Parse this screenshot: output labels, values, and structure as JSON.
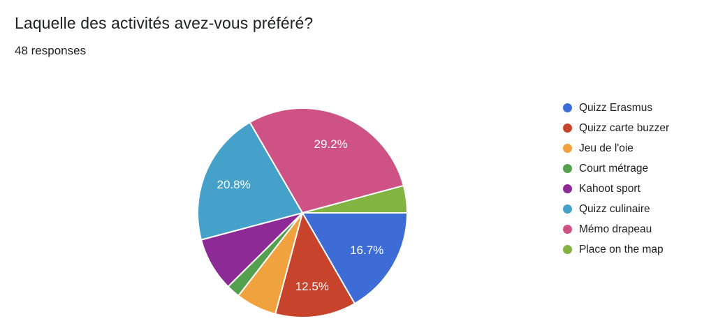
{
  "header": {
    "title": "Laquelle des activités avez-vous préféré?",
    "responses_count": "48 responses"
  },
  "chart_data": {
    "type": "pie",
    "title": "Laquelle des activités avez-vous préféré?",
    "total_responses": 48,
    "legend_position": "right",
    "start_angle_deg": 90,
    "direction": "clockwise",
    "slices": [
      {
        "label": "Quizz Erasmus",
        "pct": 16.7,
        "display": "16.7%",
        "responses": 8,
        "color": "#3D6CD7",
        "show_label": true
      },
      {
        "label": "Quizz carte buzzer",
        "pct": 12.5,
        "display": "12.5%",
        "responses": 6,
        "color": "#C7432B",
        "show_label": true
      },
      {
        "label": "Jeu de l'oie",
        "pct": 6.3,
        "display": "6.3%",
        "responses": 3,
        "color": "#F0A23F",
        "show_label": false
      },
      {
        "label": "Court métrage",
        "pct": 2.1,
        "display": "2.1%",
        "responses": 1,
        "color": "#55A04E",
        "show_label": false
      },
      {
        "label": "Kahoot sport",
        "pct": 8.3,
        "display": "8.3%",
        "responses": 4,
        "color": "#8E2A96",
        "show_label": false
      },
      {
        "label": "Quizz culinaire",
        "pct": 20.8,
        "display": "20.8%",
        "responses": 10,
        "color": "#45A1C9",
        "show_label": true
      },
      {
        "label": "Mémo drapeau",
        "pct": 29.2,
        "display": "29.2%",
        "responses": 14,
        "color": "#CE5283",
        "show_label": true
      },
      {
        "label": "Place on the map",
        "pct": 4.2,
        "display": "4.2%",
        "responses": 2,
        "color": "#83B340",
        "show_label": false
      }
    ]
  }
}
